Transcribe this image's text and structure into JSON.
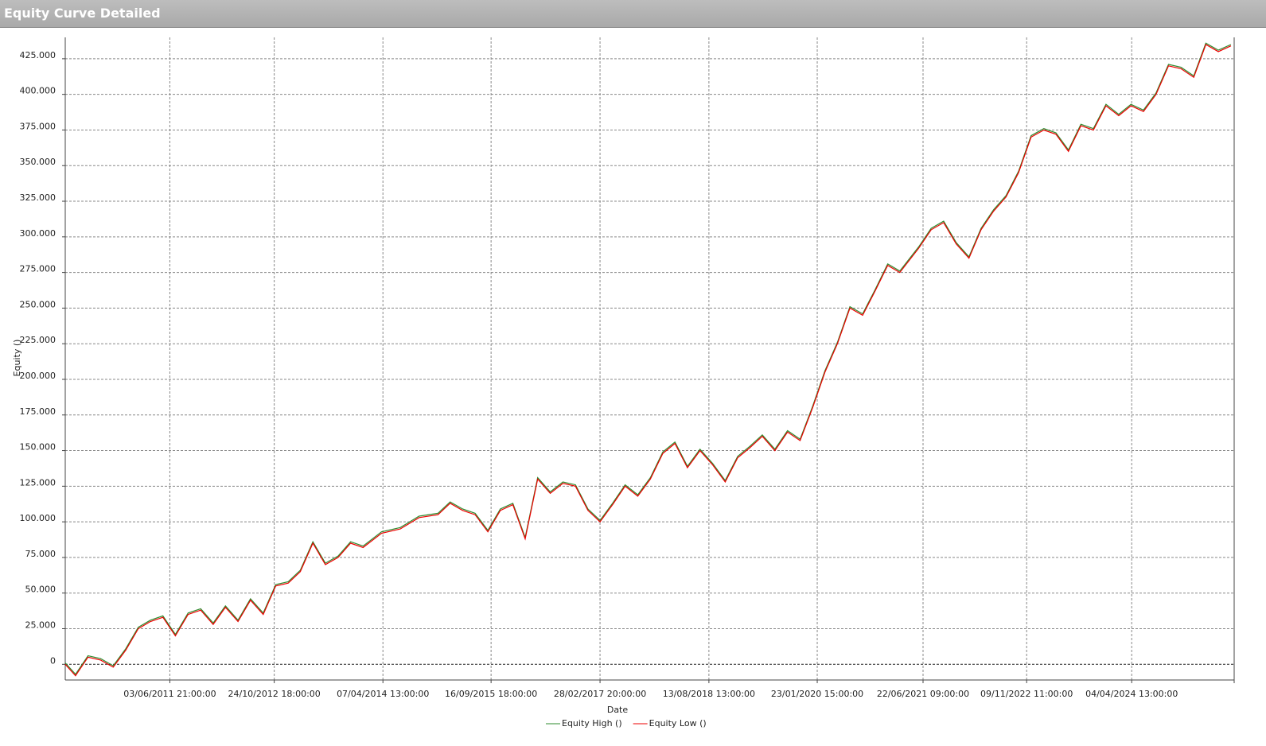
{
  "chart_data": {
    "type": "line",
    "title": "Equity Curve Detailed",
    "x_label": "Date",
    "y_label": "Equity ()",
    "xlim": [
      "2010-01-10",
      "2025-08-17"
    ],
    "xticks": [
      {
        "value": "2011-06-03T21:00:00",
        "label": "03/06/2011 21:00:00"
      },
      {
        "value": "2012-10-24T18:00:00",
        "label": "24/10/2012 18:00:00"
      },
      {
        "value": "2014-04-07T13:00:00",
        "label": "07/04/2014 13:00:00"
      },
      {
        "value": "2015-09-16T18:00:00",
        "label": "16/09/2015 18:00:00"
      },
      {
        "value": "2017-02-28T20:00:00",
        "label": "28/02/2017 20:00:00"
      },
      {
        "value": "2018-08-13T13:00:00",
        "label": "13/08/2018 13:00:00"
      },
      {
        "value": "2020-01-23T15:00:00",
        "label": "23/01/2020 15:00:00"
      },
      {
        "value": "2021-06-22T09:00:00",
        "label": "22/06/2021 09:00:00"
      },
      {
        "value": "2022-11-09T11:00:00",
        "label": "09/11/2022 11:00:00"
      },
      {
        "value": "2024-04-04T13:00:00",
        "label": "04/04/2024 13:00:00"
      }
    ],
    "ylim": [
      -11000,
      440000
    ],
    "yticks": [
      0,
      {
        "value": 25000,
        "label": "25.000"
      },
      {
        "value": 50000,
        "label": "50.000"
      },
      {
        "value": 75000,
        "label": "75.000"
      },
      {
        "value": 100000,
        "label": "100.000"
      },
      {
        "value": 125000,
        "label": "125.000"
      },
      {
        "value": 150000,
        "label": "150.000"
      },
      {
        "value": 175000,
        "label": "175.000"
      },
      {
        "value": 200000,
        "label": "200.000"
      },
      {
        "value": 225000,
        "label": "225.000"
      },
      {
        "value": 250000,
        "label": "250.000"
      },
      {
        "value": 275000,
        "label": "275.000"
      },
      {
        "value": 300000,
        "label": "300.000"
      },
      {
        "value": 325000,
        "label": "325.000"
      },
      {
        "value": 350000,
        "label": "350.000"
      },
      {
        "value": 375000,
        "label": "375.000"
      },
      {
        "value": 400000,
        "label": "400.000"
      },
      {
        "value": 425000,
        "label": "425.000"
      }
    ],
    "grid": true,
    "legend": "bottom",
    "x": [
      "2010-01-10",
      "2010-03-01",
      "2010-05-01",
      "2010-07-01",
      "2010-09-01",
      "2010-11-01",
      "2011-01-01",
      "2011-03-01",
      "2011-05-01",
      "2011-07-01",
      "2011-09-01",
      "2011-11-01",
      "2012-01-01",
      "2012-03-01",
      "2012-05-01",
      "2012-07-01",
      "2012-09-01",
      "2012-11-01",
      "2013-01-01",
      "2013-03-01",
      "2013-05-01",
      "2013-07-01",
      "2013-09-01",
      "2013-11-01",
      "2014-01-01",
      "2014-04-01",
      "2014-07-01",
      "2014-10-01",
      "2015-01-01",
      "2015-03-01",
      "2015-05-01",
      "2015-07-01",
      "2015-09-01",
      "2015-11-01",
      "2016-01-01",
      "2016-03-01",
      "2016-05-01",
      "2016-07-01",
      "2016-09-01",
      "2016-11-01",
      "2017-01-01",
      "2017-03-01",
      "2017-05-01",
      "2017-07-01",
      "2017-09-01",
      "2017-11-01",
      "2018-01-01",
      "2018-03-01",
      "2018-05-01",
      "2018-07-01",
      "2018-09-01",
      "2018-11-01",
      "2019-01-01",
      "2019-03-01",
      "2019-05-01",
      "2019-07-01",
      "2019-09-01",
      "2019-11-01",
      "2020-01-01",
      "2020-03-01",
      "2020-05-01",
      "2020-07-01",
      "2020-09-01",
      "2020-11-01",
      "2021-01-01",
      "2021-03-01",
      "2021-06-01",
      "2021-08-01",
      "2021-10-01",
      "2021-12-01",
      "2022-02-01",
      "2022-04-01",
      "2022-06-01",
      "2022-08-01",
      "2022-10-01",
      "2022-12-01",
      "2023-02-01",
      "2023-04-01",
      "2023-06-01",
      "2023-08-01",
      "2023-10-01",
      "2023-12-01",
      "2024-02-01",
      "2024-04-01",
      "2024-06-01",
      "2024-08-01",
      "2024-10-01",
      "2024-12-01",
      "2025-02-01",
      "2025-04-01",
      "2025-06-01",
      "2025-08-01"
    ],
    "series": [
      {
        "name": "Equity High ()",
        "color": "#2e8b2e",
        "values": [
          1000,
          -7000,
          6000,
          4000,
          -1000,
          11000,
          26000,
          31000,
          34000,
          21000,
          36000,
          39000,
          29000,
          41000,
          31000,
          46000,
          36000,
          56000,
          58000,
          66000,
          86000,
          71000,
          76000,
          86000,
          83000,
          93000,
          96000,
          104000,
          106000,
          114000,
          109000,
          106000,
          94000,
          109000,
          113000,
          89000,
          131000,
          121000,
          128000,
          126000,
          109000,
          101000,
          113000,
          126000,
          119000,
          131000,
          149000,
          156000,
          139000,
          151000,
          141000,
          129000,
          146000,
          153000,
          161000,
          151000,
          164000,
          158000,
          181000,
          206000,
          226000,
          251000,
          246000,
          263000,
          281000,
          276000,
          293000,
          306000,
          311000,
          296000,
          286000,
          306000,
          319000,
          329000,
          346000,
          371000,
          376000,
          373000,
          361000,
          379000,
          376000,
          393000,
          386000,
          393000,
          389000,
          401000,
          421000,
          419000,
          413000,
          436000,
          431000,
          435000
        ]
      },
      {
        "name": "Equity Low ()",
        "color": "#ee0000",
        "values": [
          0,
          -8000,
          5000,
          3000,
          -2000,
          10000,
          25000,
          30000,
          33000,
          20000,
          35000,
          38000,
          28000,
          40000,
          30000,
          45000,
          35000,
          55000,
          57000,
          65000,
          85000,
          70000,
          75000,
          85000,
          82000,
          92000,
          95000,
          103000,
          105000,
          113000,
          108000,
          105000,
          93000,
          108000,
          112000,
          88000,
          130000,
          120000,
          127000,
          125000,
          108000,
          100000,
          112000,
          125000,
          118000,
          130000,
          148000,
          155000,
          138000,
          150000,
          140000,
          128000,
          145000,
          152000,
          160000,
          150000,
          163000,
          157000,
          180000,
          205000,
          225000,
          250000,
          245000,
          262000,
          280000,
          275000,
          292000,
          305000,
          310000,
          295000,
          285000,
          305000,
          318000,
          328000,
          345000,
          370000,
          375000,
          372000,
          360000,
          378000,
          375000,
          392000,
          385000,
          392000,
          388000,
          400000,
          420000,
          418000,
          412000,
          435000,
          430000,
          434000
        ]
      }
    ]
  }
}
